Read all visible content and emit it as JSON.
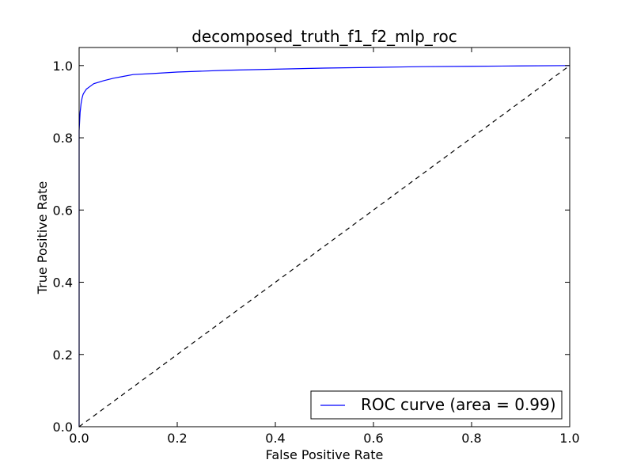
{
  "chart_data": {
    "type": "line",
    "title": "decomposed_truth_f1_f2_mlp_roc",
    "xlabel": "False Positive Rate",
    "ylabel": "True Positive Rate",
    "xlim": [
      0.0,
      1.0
    ],
    "ylim": [
      0.0,
      1.05
    ],
    "xticks": [
      "0.0",
      "0.2",
      "0.4",
      "0.6",
      "0.8",
      "1.0"
    ],
    "yticks": [
      "0.0",
      "0.2",
      "0.4",
      "0.6",
      "0.8",
      "1.0"
    ],
    "grid": false,
    "legend_position": "bottom-right",
    "series": [
      {
        "name": "ROC curve (area = 0.99)",
        "color": "#0000ff",
        "style": "solid",
        "x": [
          0.0,
          0.0,
          0.002,
          0.004,
          0.006,
          0.008,
          0.01,
          0.015,
          0.02,
          0.03,
          0.05,
          0.07,
          0.09,
          0.11,
          0.15,
          0.2,
          0.3,
          0.4,
          0.5,
          0.6,
          0.7,
          0.8,
          0.9,
          1.0
        ],
        "y": [
          0.0,
          0.82,
          0.87,
          0.895,
          0.91,
          0.92,
          0.925,
          0.935,
          0.94,
          0.95,
          0.958,
          0.965,
          0.97,
          0.975,
          0.978,
          0.982,
          0.987,
          0.99,
          0.993,
          0.995,
          0.997,
          0.998,
          0.999,
          1.0
        ]
      },
      {
        "color": "#000000",
        "style": "dashed",
        "x": [
          0.0,
          1.0
        ],
        "y": [
          0.0,
          1.0
        ]
      }
    ]
  }
}
